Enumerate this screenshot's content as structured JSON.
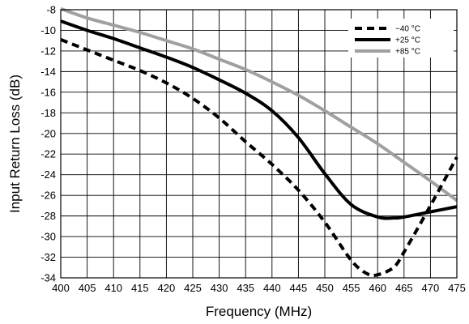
{
  "chart_data": {
    "type": "line",
    "title": "",
    "xlabel": "Frequency (MHz)",
    "ylabel": "Input Return Loss (dB)",
    "xlim": [
      400,
      475
    ],
    "ylim": [
      -34,
      -8
    ],
    "x_ticks": [
      400,
      405,
      410,
      415,
      420,
      425,
      430,
      435,
      440,
      445,
      450,
      455,
      460,
      465,
      470,
      475
    ],
    "y_ticks": [
      -8,
      -10,
      -12,
      -14,
      -16,
      -18,
      -20,
      -22,
      -24,
      -26,
      -28,
      -30,
      -32,
      -34
    ],
    "y_tick_labels": [
      "-8",
      "-10",
      "-12",
      "-14",
      "-16",
      "-18",
      "-20",
      "-22",
      "-24",
      "-26",
      "-28",
      "-30",
      "-32",
      "-34"
    ],
    "grid": true,
    "legend_position": "top-right",
    "series": [
      {
        "name": "−40 °C",
        "style": "dashed",
        "color": "#000000",
        "x": [
          400,
          405,
          410,
          415,
          420,
          425,
          430,
          435,
          440,
          445,
          450,
          455,
          458,
          460,
          463,
          465,
          470,
          475
        ],
        "y": [
          -10.9,
          -11.9,
          -12.9,
          -13.9,
          -15.1,
          -16.6,
          -18.5,
          -20.8,
          -23.0,
          -25.5,
          -28.6,
          -32.3,
          -33.6,
          -33.7,
          -33.0,
          -31.5,
          -27.0,
          -22.3
        ]
      },
      {
        "name": "+25 °C",
        "style": "solid",
        "color": "#000000",
        "x": [
          400,
          405,
          410,
          415,
          420,
          425,
          430,
          435,
          440,
          445,
          450,
          455,
          460,
          463,
          465,
          470,
          475
        ],
        "y": [
          -9.1,
          -10.0,
          -10.8,
          -11.7,
          -12.6,
          -13.6,
          -14.8,
          -16.1,
          -17.8,
          -20.4,
          -23.9,
          -26.9,
          -28.1,
          -28.2,
          -28.1,
          -27.6,
          -27.1
        ]
      },
      {
        "name": "+85 °C",
        "style": "solid",
        "color": "#a0a0a0",
        "x": [
          400,
          405,
          410,
          415,
          420,
          425,
          430,
          435,
          440,
          445,
          450,
          455,
          460,
          465,
          470,
          475
        ],
        "y": [
          -7.9,
          -8.8,
          -9.5,
          -10.2,
          -11.0,
          -11.8,
          -12.8,
          -13.8,
          -15.0,
          -16.3,
          -17.8,
          -19.4,
          -21.0,
          -22.8,
          -24.6,
          -26.5
        ]
      }
    ]
  }
}
